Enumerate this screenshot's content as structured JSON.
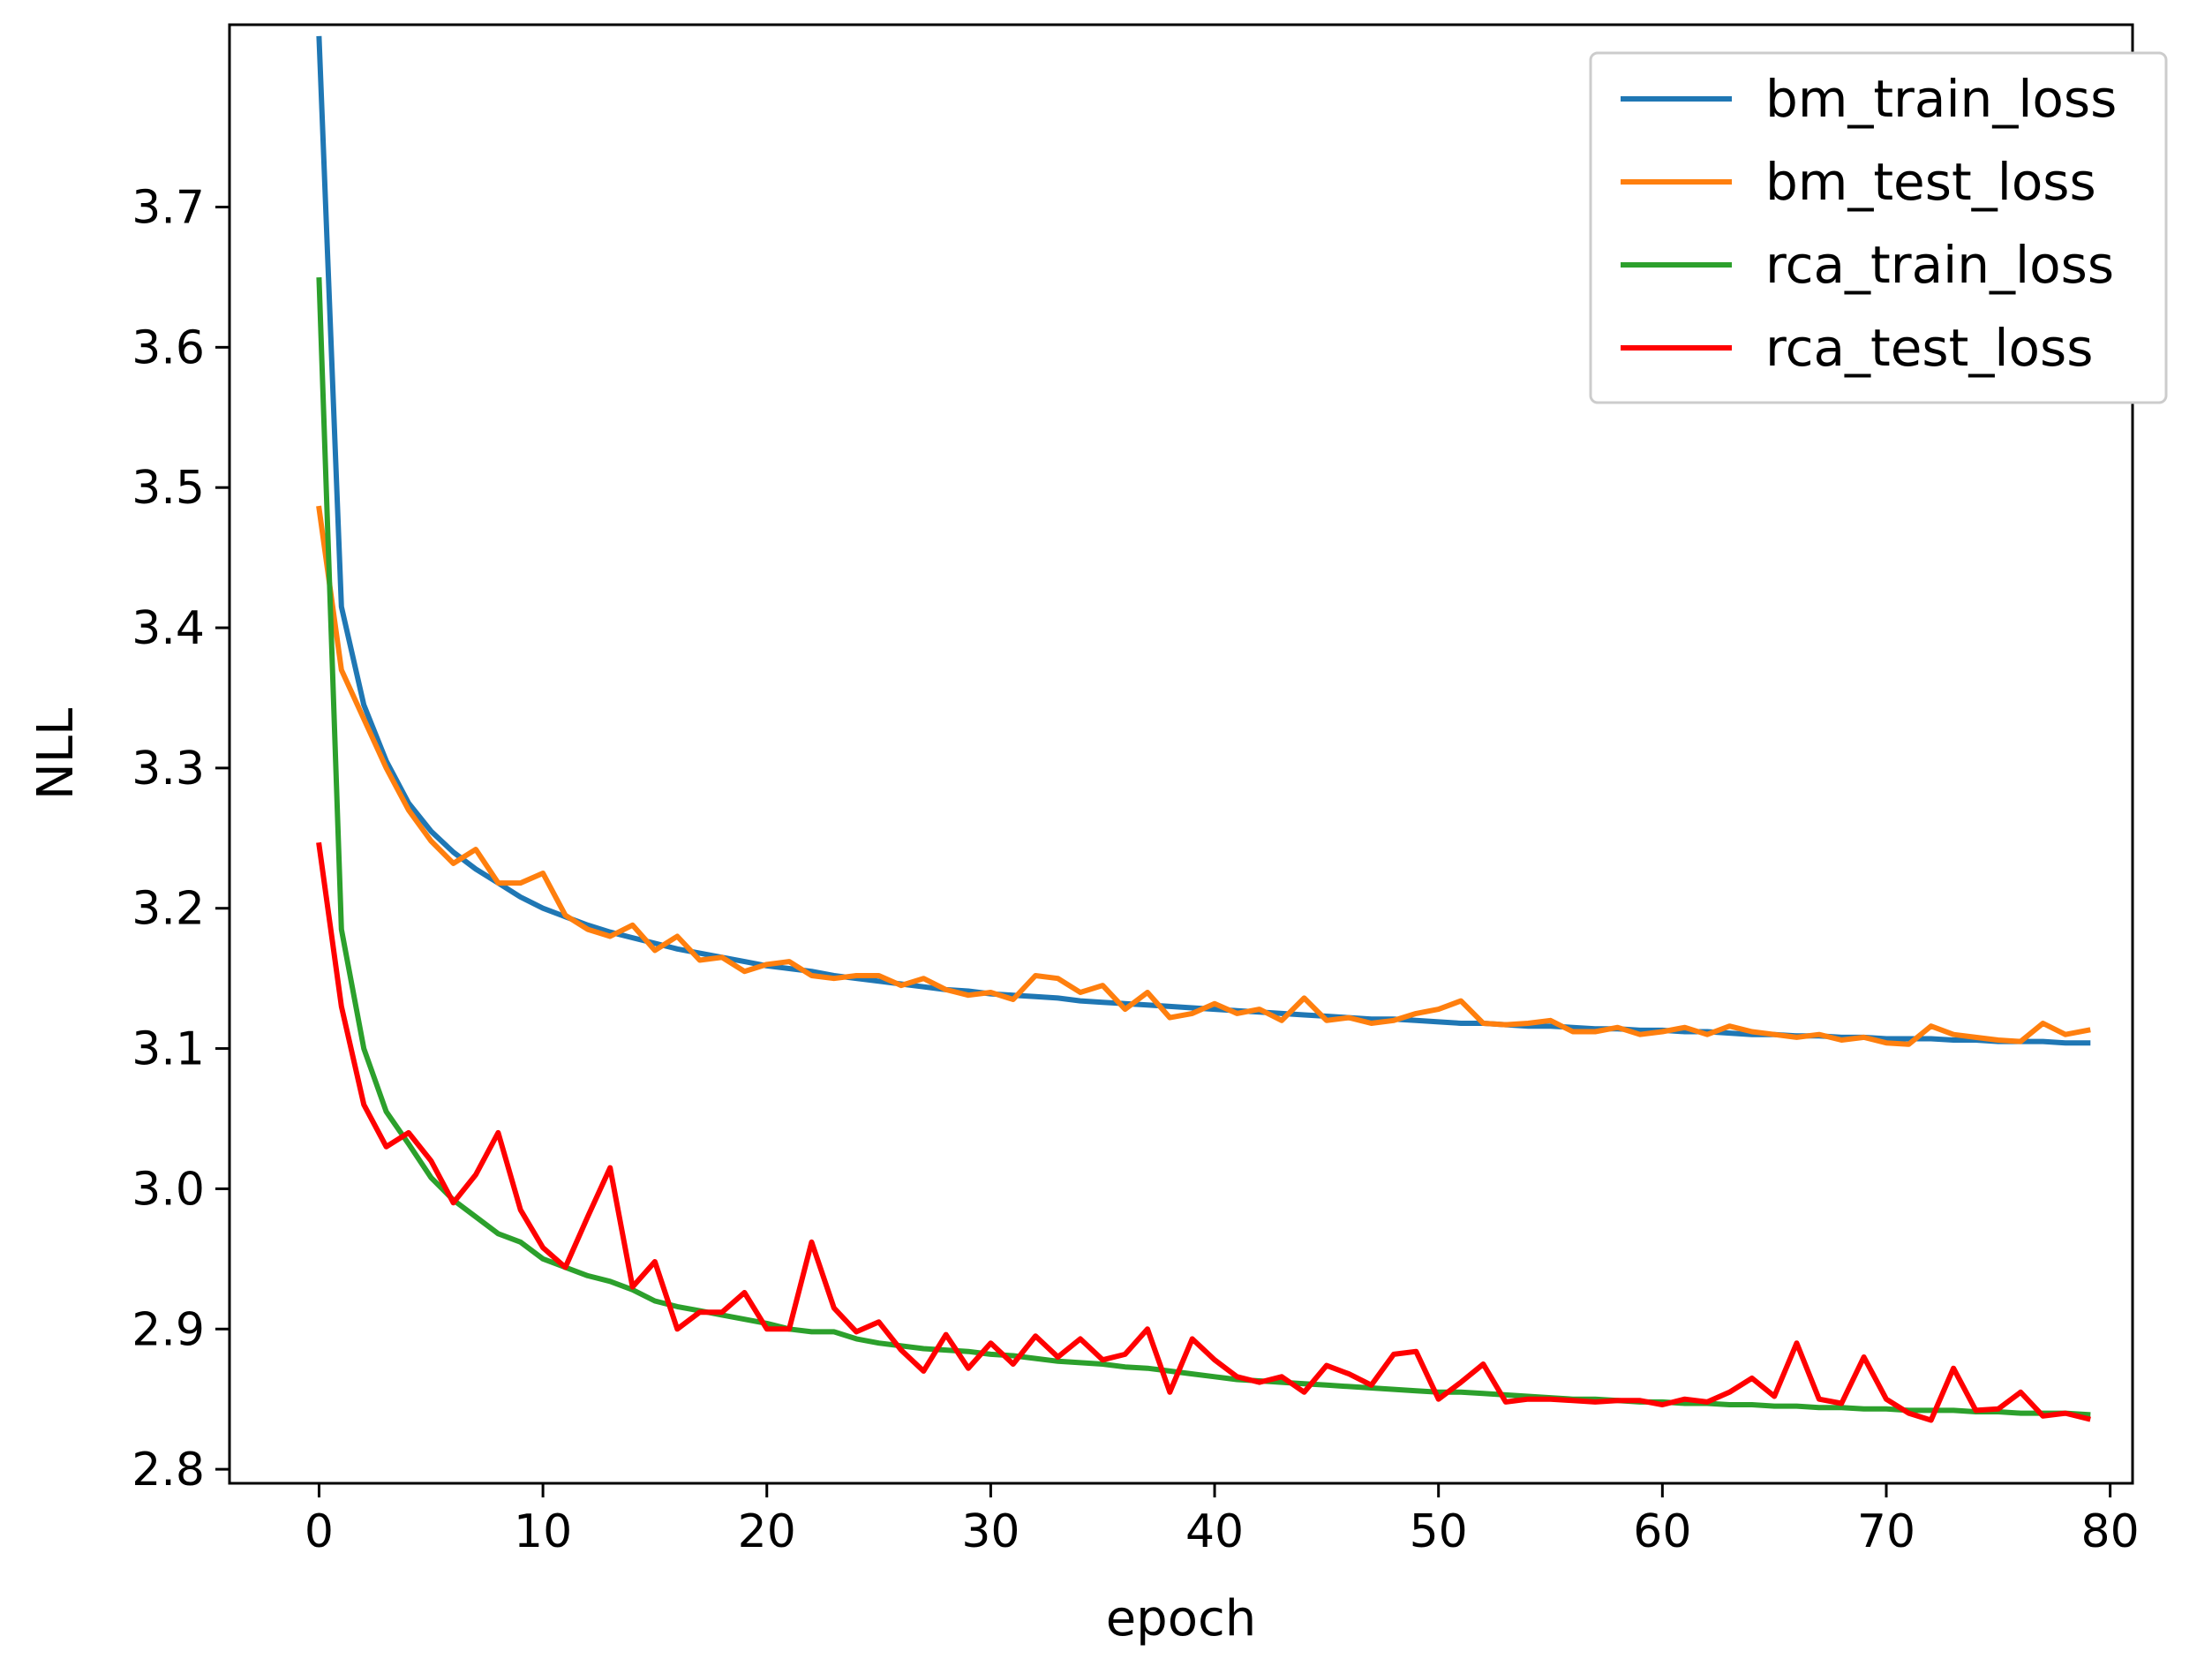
{
  "chart_data": {
    "type": "line",
    "xlabel": "epoch",
    "ylabel": "NLL",
    "xlim": [
      -4,
      81
    ],
    "ylim": [
      2.79,
      3.83
    ],
    "xticks": [
      0,
      10,
      20,
      30,
      40,
      50,
      60,
      70,
      80
    ],
    "yticks": [
      2.8,
      2.9,
      3.0,
      3.1,
      3.2,
      3.3,
      3.4,
      3.5,
      3.6,
      3.7
    ],
    "xtick_labels": [
      "0",
      "10",
      "20",
      "30",
      "40",
      "50",
      "60",
      "70",
      "80"
    ],
    "ytick_labels": [
      "2.8",
      "2.9",
      "3.0",
      "3.1",
      "3.2",
      "3.3",
      "3.4",
      "3.5",
      "3.6",
      "3.7"
    ],
    "grid": false,
    "legend_position": "top-right",
    "x": [
      0,
      1,
      2,
      3,
      4,
      5,
      6,
      7,
      8,
      9,
      10,
      11,
      12,
      13,
      14,
      15,
      16,
      17,
      18,
      19,
      20,
      21,
      22,
      23,
      24,
      25,
      26,
      27,
      28,
      29,
      30,
      31,
      32,
      33,
      34,
      35,
      36,
      37,
      38,
      39,
      40,
      41,
      42,
      43,
      44,
      45,
      46,
      47,
      48,
      49,
      50,
      51,
      52,
      53,
      54,
      55,
      56,
      57,
      58,
      59,
      60,
      61,
      62,
      63,
      64,
      65,
      66,
      67,
      68,
      69,
      70,
      71,
      72,
      73,
      74,
      75,
      76,
      77,
      78,
      79
    ],
    "series": [
      {
        "name": "bm_train_loss",
        "color": "#1f77b4",
        "values": [
          3.82,
          3.415,
          3.345,
          3.305,
          3.275,
          3.255,
          3.24,
          3.228,
          3.218,
          3.208,
          3.2,
          3.194,
          3.188,
          3.183,
          3.179,
          3.175,
          3.171,
          3.168,
          3.165,
          3.162,
          3.159,
          3.157,
          3.155,
          3.152,
          3.15,
          3.148,
          3.146,
          3.144,
          3.142,
          3.141,
          3.139,
          3.138,
          3.137,
          3.136,
          3.134,
          3.133,
          3.132,
          3.131,
          3.13,
          3.129,
          3.128,
          3.127,
          3.126,
          3.125,
          3.124,
          3.123,
          3.122,
          3.121,
          3.121,
          3.12,
          3.119,
          3.118,
          3.118,
          3.117,
          3.116,
          3.116,
          3.115,
          3.114,
          3.114,
          3.113,
          3.113,
          3.112,
          3.112,
          3.111,
          3.11,
          3.11,
          3.109,
          3.109,
          3.108,
          3.108,
          3.107,
          3.107,
          3.107,
          3.106,
          3.106,
          3.105,
          3.105,
          3.105,
          3.104,
          3.104
        ]
      },
      {
        "name": "bm_test_loss",
        "color": "#ff7f0e",
        "values": [
          3.485,
          3.37,
          3.335,
          3.3,
          3.27,
          3.248,
          3.232,
          3.242,
          3.218,
          3.218,
          3.225,
          3.195,
          3.185,
          3.18,
          3.188,
          3.17,
          3.18,
          3.163,
          3.165,
          3.155,
          3.16,
          3.162,
          3.152,
          3.15,
          3.152,
          3.152,
          3.145,
          3.15,
          3.142,
          3.138,
          3.14,
          3.135,
          3.152,
          3.15,
          3.14,
          3.145,
          3.128,
          3.14,
          3.122,
          3.125,
          3.132,
          3.125,
          3.128,
          3.12,
          3.136,
          3.12,
          3.122,
          3.118,
          3.12,
          3.125,
          3.128,
          3.134,
          3.118,
          3.117,
          3.118,
          3.12,
          3.112,
          3.112,
          3.115,
          3.11,
          3.112,
          3.115,
          3.11,
          3.116,
          3.112,
          3.11,
          3.108,
          3.11,
          3.106,
          3.108,
          3.104,
          3.103,
          3.116,
          3.11,
          3.108,
          3.106,
          3.105,
          3.118,
          3.11,
          3.113
        ]
      },
      {
        "name": "rca_train_loss",
        "color": "#2ca02c",
        "values": [
          3.648,
          3.185,
          3.1,
          3.055,
          3.032,
          3.008,
          2.992,
          2.98,
          2.968,
          2.962,
          2.95,
          2.944,
          2.938,
          2.934,
          2.928,
          2.92,
          2.916,
          2.913,
          2.91,
          2.907,
          2.904,
          2.9,
          2.898,
          2.898,
          2.893,
          2.89,
          2.888,
          2.886,
          2.885,
          2.884,
          2.882,
          2.881,
          2.879,
          2.877,
          2.876,
          2.875,
          2.873,
          2.872,
          2.87,
          2.868,
          2.866,
          2.864,
          2.863,
          2.862,
          2.861,
          2.86,
          2.859,
          2.858,
          2.857,
          2.856,
          2.855,
          2.855,
          2.854,
          2.853,
          2.852,
          2.851,
          2.85,
          2.85,
          2.849,
          2.848,
          2.848,
          2.847,
          2.847,
          2.846,
          2.846,
          2.845,
          2.845,
          2.844,
          2.844,
          2.843,
          2.843,
          2.842,
          2.842,
          2.842,
          2.841,
          2.841,
          2.84,
          2.84,
          2.84,
          2.839
        ]
      },
      {
        "name": "rca_test_loss",
        "color": "#ff0000",
        "values": [
          3.245,
          3.13,
          3.06,
          3.03,
          3.04,
          3.02,
          2.99,
          3.01,
          3.04,
          2.985,
          2.958,
          2.944,
          2.98,
          3.015,
          2.93,
          2.948,
          2.9,
          2.912,
          2.912,
          2.926,
          2.9,
          2.9,
          2.962,
          2.915,
          2.898,
          2.905,
          2.885,
          2.87,
          2.896,
          2.872,
          2.89,
          2.875,
          2.895,
          2.88,
          2.893,
          2.878,
          2.882,
          2.9,
          2.855,
          2.893,
          2.878,
          2.866,
          2.862,
          2.866,
          2.855,
          2.874,
          2.868,
          2.86,
          2.882,
          2.884,
          2.85,
          2.862,
          2.875,
          2.848,
          2.85,
          2.85,
          2.849,
          2.848,
          2.849,
          2.849,
          2.846,
          2.85,
          2.848,
          2.855,
          2.865,
          2.852,
          2.89,
          2.85,
          2.847,
          2.88,
          2.85,
          2.84,
          2.835,
          2.872,
          2.842,
          2.843,
          2.855,
          2.838,
          2.84,
          2.836
        ]
      }
    ]
  }
}
